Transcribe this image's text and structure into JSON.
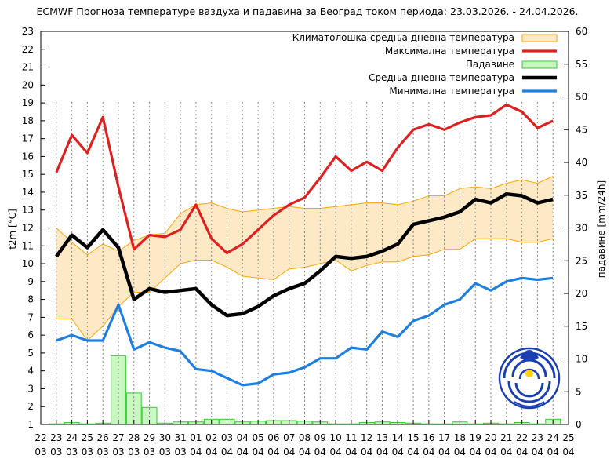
{
  "chart_data": {
    "type": "line",
    "title": "ECMWF Прогноза температуре ваздуха и падавина за Београд током периода: 23.03.2026. - 24.04.2026.",
    "ylabel": "t2m [°C]",
    "y2label": "падавине [mm/24h]",
    "ylim": [
      1,
      23
    ],
    "y2lim": [
      0,
      60
    ],
    "yticks": [
      "1",
      "2",
      "3",
      "4",
      "5",
      "6",
      "7",
      "8",
      "9",
      "10",
      "11",
      "12",
      "13",
      "14",
      "15",
      "16",
      "17",
      "18",
      "19",
      "20",
      "21",
      "22",
      "23"
    ],
    "y2ticks": [
      "0",
      "5",
      "10",
      "15",
      "20",
      "25",
      "30",
      "35",
      "40",
      "45",
      "50",
      "55",
      "60"
    ],
    "xticks_day": [
      "22",
      "23",
      "24",
      "25",
      "26",
      "27",
      "28",
      "29",
      "30",
      "31",
      "01",
      "02",
      "03",
      "04",
      "05",
      "06",
      "07",
      "08",
      "09",
      "10",
      "11",
      "12",
      "13",
      "14",
      "15",
      "16",
      "17",
      "18",
      "19",
      "20",
      "21",
      "22",
      "23",
      "24",
      "25"
    ],
    "xticks_month": [
      "03",
      "03",
      "03",
      "03",
      "03",
      "03",
      "03",
      "03",
      "03",
      "03",
      "04",
      "04",
      "04",
      "04",
      "04",
      "04",
      "04",
      "04",
      "04",
      "04",
      "04",
      "04",
      "04",
      "04",
      "04",
      "04",
      "04",
      "04",
      "04",
      "04",
      "04",
      "04",
      "04",
      "04",
      "04"
    ],
    "grid": "vertical dotted",
    "legend_position": "top-right",
    "legend": [
      {
        "label": "Климатолошка средња дневна температура",
        "color": "#ffa500"
      },
      {
        "label": "Максимална температура",
        "color": "#e02020"
      },
      {
        "label": "Падавине",
        "color": "#33cc33"
      },
      {
        "label": "Средња дневна температура",
        "color": "#000000"
      },
      {
        "label": "Минимална температура",
        "color": "#1f7fe0"
      }
    ],
    "x": [
      23,
      24,
      25,
      26,
      27,
      28,
      29,
      30,
      31,
      32,
      33,
      34,
      35,
      36,
      37,
      38,
      39,
      40,
      41,
      42,
      43,
      44,
      45,
      46,
      47,
      48,
      49,
      50,
      51,
      52,
      53,
      54,
      55
    ],
    "clim_upper": [
      12.0,
      11.2,
      10.5,
      11.1,
      10.7,
      11.3,
      11.6,
      11.7,
      12.8,
      13.3,
      13.4,
      13.1,
      12.9,
      13.0,
      13.1,
      13.2,
      13.1,
      13.1,
      13.2,
      13.3,
      13.4,
      13.4,
      13.3,
      13.5,
      13.8,
      13.8,
      14.2,
      14.3,
      14.2,
      14.5,
      14.7,
      14.5,
      14.9
    ],
    "clim_lower": [
      6.9,
      6.9,
      5.7,
      6.5,
      7.6,
      8.4,
      8.4,
      9.2,
      10.0,
      10.2,
      10.2,
      9.8,
      9.3,
      9.2,
      9.1,
      9.7,
      9.8,
      10.0,
      10.2,
      9.6,
      9.9,
      10.1,
      10.1,
      10.4,
      10.5,
      10.8,
      10.8,
      11.4,
      11.4,
      11.4,
      11.2,
      11.2,
      11.4
    ],
    "series": [
      {
        "name": "Максимална температура",
        "color": "#e02020",
        "values": [
          15.1,
          17.2,
          16.2,
          18.2,
          14.3,
          10.8,
          11.6,
          11.5,
          11.9,
          13.3,
          11.4,
          10.6,
          11.1,
          11.9,
          12.7,
          13.3,
          13.7,
          14.8,
          16.0,
          15.2,
          15.7,
          15.2,
          16.5,
          17.5,
          17.8,
          17.5,
          17.9,
          18.2,
          18.3,
          18.9,
          18.5,
          17.6,
          18.0
        ]
      },
      {
        "name": "Средња дневна температура",
        "color": "#000000",
        "values": [
          10.4,
          11.6,
          10.9,
          11.9,
          10.9,
          8.0,
          8.6,
          8.4,
          8.5,
          8.6,
          7.7,
          7.1,
          7.2,
          7.6,
          8.2,
          8.6,
          8.9,
          9.6,
          10.4,
          10.3,
          10.4,
          10.7,
          11.1,
          12.2,
          12.4,
          12.6,
          12.9,
          13.6,
          13.4,
          13.9,
          13.8,
          13.4,
          13.6
        ]
      },
      {
        "name": "Минимална температура",
        "color": "#1f7fe0",
        "values": [
          5.7,
          6.0,
          5.7,
          5.7,
          7.7,
          5.2,
          5.6,
          5.3,
          5.1,
          4.1,
          4.0,
          3.6,
          3.2,
          3.3,
          3.8,
          3.9,
          4.2,
          4.7,
          4.7,
          5.3,
          5.2,
          6.2,
          5.9,
          6.8,
          7.1,
          7.7,
          8.0,
          8.9,
          8.5,
          9.0,
          9.2,
          9.1,
          9.2
        ]
      },
      {
        "name": "Падавине",
        "color": "#33cc33",
        "axis": "right",
        "type": "bar",
        "values": [
          0.1,
          0.3,
          0.1,
          0.2,
          10.5,
          4.8,
          2.6,
          0.2,
          0.4,
          0.4,
          0.8,
          0.8,
          0.4,
          0.5,
          0.6,
          0.6,
          0.5,
          0.4,
          0.1,
          0.1,
          0.3,
          0.4,
          0.3,
          0.2,
          0.1,
          0.1,
          0.4,
          0.1,
          0.2,
          0.1,
          0.3,
          0.1,
          0.8
        ]
      }
    ],
    "logo": "rhmz-srbije-logo"
  }
}
